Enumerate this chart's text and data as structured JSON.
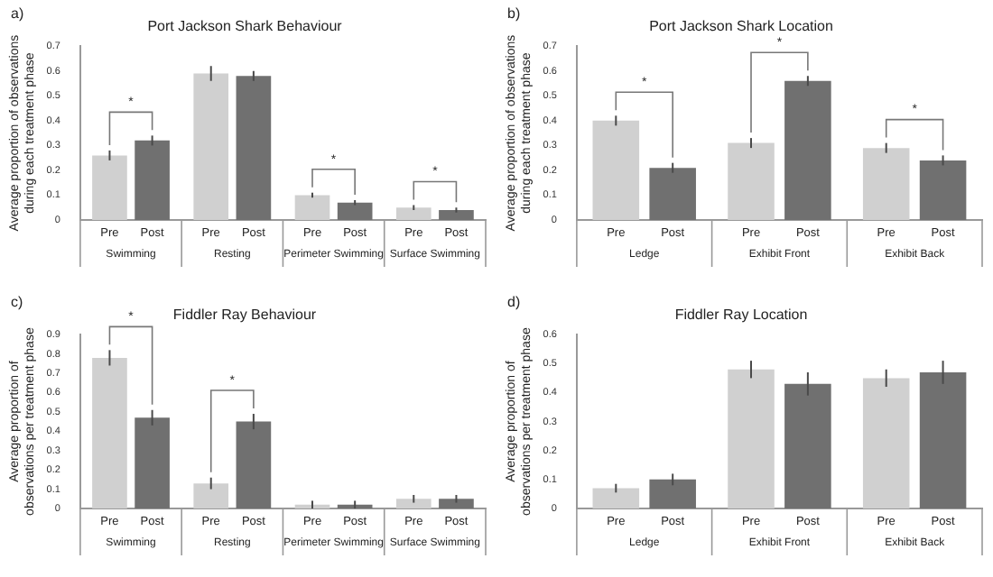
{
  "chart_data": [
    {
      "type": "bar",
      "title": "Port Jackson Shark Behaviour",
      "ylabel": "Average proportion of observations during each treatment phase",
      "categories": [
        "Swimming",
        "Resting",
        "Perimeter Swimming",
        "Surface Swimming"
      ],
      "series": [
        {
          "name": "Pre",
          "color": "#d0d0d0",
          "values": [
            0.26,
            0.59,
            0.1,
            0.05
          ],
          "errors": [
            0.02,
            0.03,
            0.01,
            0.01
          ]
        },
        {
          "name": "Post",
          "color": "#707070",
          "values": [
            0.32,
            0.58,
            0.07,
            0.04
          ],
          "errors": [
            0.02,
            0.02,
            0.01,
            0.01
          ]
        }
      ],
      "ylim": [
        0,
        0.7
      ],
      "yticks": [
        0,
        0.1,
        0.2,
        0.3,
        0.4,
        0.5,
        0.6,
        0.7
      ],
      "grid": false,
      "legend": false,
      "annotations": [
        "a)",
        "*",
        "*",
        "*"
      ]
    },
    {
      "type": "bar",
      "title": "Port Jackson Shark Location",
      "ylabel": "Average proportion of observations during each treatment phase",
      "categories": [
        "Ledge",
        "Exhibit Front",
        "Exhibit Back"
      ],
      "series": [
        {
          "name": "Pre",
          "color": "#d0d0d0",
          "values": [
            0.4,
            0.31,
            0.29
          ],
          "errors": [
            0.02,
            0.02,
            0.02
          ]
        },
        {
          "name": "Post",
          "color": "#707070",
          "values": [
            0.21,
            0.56,
            0.24
          ],
          "errors": [
            0.02,
            0.02,
            0.02
          ]
        }
      ],
      "ylim": [
        0,
        0.7
      ],
      "yticks": [
        0,
        0.1,
        0.2,
        0.3,
        0.4,
        0.5,
        0.6,
        0.7
      ],
      "grid": false,
      "legend": false,
      "annotations": [
        "b)",
        "*",
        "*",
        "*"
      ]
    },
    {
      "type": "bar",
      "title": "Fiddler Ray Behaviour",
      "ylabel": "Average proportion of observations per treatment phase",
      "categories": [
        "Swimming",
        "Resting",
        "Perimeter Swimming",
        "Surface Swimming"
      ],
      "series": [
        {
          "name": "Pre",
          "color": "#d0d0d0",
          "values": [
            0.78,
            0.13,
            0.02,
            0.05
          ],
          "errors": [
            0.04,
            0.03,
            0.02,
            0.02
          ]
        },
        {
          "name": "Post",
          "color": "#707070",
          "values": [
            0.47,
            0.45,
            0.02,
            0.05
          ],
          "errors": [
            0.04,
            0.04,
            0.02,
            0.02
          ]
        }
      ],
      "ylim": [
        0,
        0.9
      ],
      "yticks": [
        0,
        0.1,
        0.2,
        0.3,
        0.4,
        0.5,
        0.6,
        0.7,
        0.8,
        0.9
      ],
      "grid": false,
      "legend": false,
      "annotations": [
        "c)",
        "*",
        "*"
      ]
    },
    {
      "type": "bar",
      "title": "Fiddler Ray Location",
      "ylabel": "Average proportion of observations per treatment phase",
      "categories": [
        "Ledge",
        "Exhibit Front",
        "Exhibit Back"
      ],
      "series": [
        {
          "name": "Pre",
          "color": "#d0d0d0",
          "values": [
            0.07,
            0.48,
            0.45
          ],
          "errors": [
            0.015,
            0.03,
            0.03
          ]
        },
        {
          "name": "Post",
          "color": "#707070",
          "values": [
            0.1,
            0.43,
            0.47
          ],
          "errors": [
            0.02,
            0.04,
            0.04
          ]
        }
      ],
      "ylim": [
        0,
        0.6
      ],
      "yticks": [
        0,
        0.1,
        0.2,
        0.3,
        0.4,
        0.5,
        0.6
      ],
      "grid": false,
      "legend": false,
      "annotations": [
        "d)"
      ]
    }
  ]
}
